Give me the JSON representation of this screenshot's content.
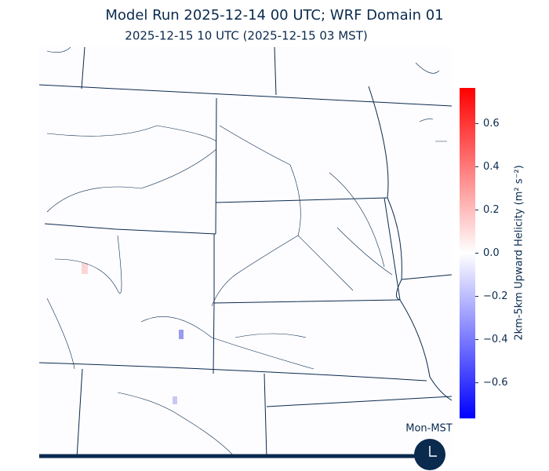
{
  "header": {
    "title": "Model Run 2025-12-14 00 UTC; WRF Domain 01",
    "subtitle": "2025-12-15 10 UTC  (2025-12-15 03 MST)"
  },
  "colorbar": {
    "label": "2km-5km Upward Helicity (m² s⁻²)",
    "lim": [
      -0.765,
      0.765
    ],
    "colors": [
      "#0000ff",
      "#ffffff",
      "#ff0000"
    ],
    "ticks": [
      {
        "value": -0.6,
        "label": "−0.6"
      },
      {
        "value": -0.4,
        "label": "−0.4"
      },
      {
        "value": -0.2,
        "label": "−0.2"
      },
      {
        "value": 0,
        "label": "0.0"
      },
      0.2,
      0.4,
      0.6
    ]
  },
  "clock": {
    "label": "Mon-MST"
  }
}
